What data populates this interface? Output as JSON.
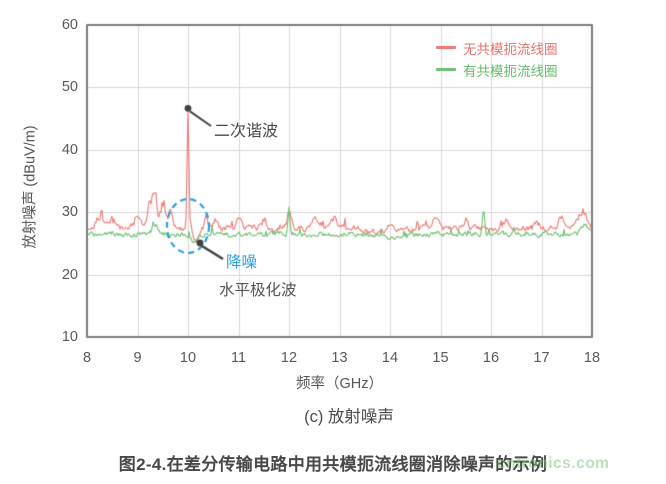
{
  "figure": {
    "sub_caption": "(c) 放射噪声",
    "main_caption": "图2-4.在差分传输电路中用共模扼流线圈消除噪声的示例",
    "watermark": "cntronics.com"
  },
  "colors": {
    "series_no_choke": "#ef7e79",
    "series_with_choke": "#74c275",
    "legend_no_choke_text": "#e8736f",
    "legend_with_choke_text": "#64bc66",
    "grid": "#d8d8d8",
    "frame": "#7d7d7d",
    "tick_text": "#595959",
    "annotation_dark": "#424242",
    "annotation_blue": "#2b9fdf",
    "dashed_circle": "#2b9fdf"
  },
  "chart_data": {
    "type": "line",
    "title": "(c) 放射噪声",
    "xlabel": "频率（GHz）",
    "ylabel": "放射噪声 (dBuV/m)",
    "xlim": [
      8,
      18
    ],
    "ylim": [
      10,
      60
    ],
    "x_ticks": [
      8,
      9,
      10,
      11,
      12,
      13,
      14,
      15,
      16,
      17,
      18
    ],
    "y_ticks": [
      60,
      50,
      40,
      30,
      20,
      10
    ],
    "grid": true,
    "legend_position": "top-right",
    "series": [
      {
        "name": "无共模扼流线圈",
        "color": "#ef7e79",
        "baseline": 27.4,
        "noise_amp": 0.85,
        "spike_amp": 1.6,
        "x_profile": [
          8,
          8.5,
          9,
          9.5,
          10,
          10.5,
          11,
          11.5,
          12,
          12.5,
          13,
          13.5,
          14,
          14.5,
          15,
          15.5,
          16,
          16.5,
          17,
          17.5,
          18
        ],
        "y_profile": [
          28,
          28.5,
          29.5,
          32,
          46,
          28.5,
          28.5,
          28.5,
          29.8,
          28.5,
          29,
          27.5,
          27,
          27.5,
          29.2,
          28.5,
          28.5,
          28,
          28.5,
          29,
          30
        ],
        "peaks": [
          {
            "x": 8.25,
            "y": 29.3,
            "w": 0.07
          },
          {
            "x": 8.5,
            "y": 28.8,
            "w": 0.06
          },
          {
            "x": 9.0,
            "y": 29.5,
            "w": 0.05
          },
          {
            "x": 9.25,
            "y": 31.2,
            "w": 0.05
          },
          {
            "x": 9.35,
            "y": 32.3,
            "w": 0.04
          },
          {
            "x": 9.5,
            "y": 31.5,
            "w": 0.05
          },
          {
            "x": 9.65,
            "y": 30.0,
            "w": 0.04
          },
          {
            "x": 10.0,
            "y": 46.0,
            "w": 0.018
          },
          {
            "x": 10.35,
            "y": 29.8,
            "w": 0.03
          },
          {
            "x": 10.55,
            "y": 29.0,
            "w": 0.03
          },
          {
            "x": 11.0,
            "y": 29.0,
            "w": 0.04
          },
          {
            "x": 11.5,
            "y": 28.8,
            "w": 0.05
          },
          {
            "x": 12.0,
            "y": 29.8,
            "w": 0.04
          },
          {
            "x": 12.5,
            "y": 28.8,
            "w": 0.04
          },
          {
            "x": 12.9,
            "y": 29.2,
            "w": 0.05
          },
          {
            "x": 14.0,
            "y": 28.3,
            "w": 0.05
          },
          {
            "x": 14.9,
            "y": 29.2,
            "w": 0.06
          },
          {
            "x": 15.5,
            "y": 28.6,
            "w": 0.04
          },
          {
            "x": 16.3,
            "y": 28.8,
            "w": 0.05
          },
          {
            "x": 16.9,
            "y": 28.8,
            "w": 0.04
          },
          {
            "x": 17.4,
            "y": 29.2,
            "w": 0.05
          },
          {
            "x": 17.8,
            "y": 30.2,
            "w": 0.08
          }
        ],
        "dips": [
          {
            "x": 10.18,
            "y": 25.2,
            "w": 0.06
          },
          {
            "x": 13.9,
            "y": 26.6,
            "w": 0.25
          }
        ]
      },
      {
        "name": "有共模扼流线圈",
        "color": "#74c275",
        "baseline": 26.45,
        "noise_amp": 0.75,
        "spike_amp": 1.1,
        "x_profile": [
          8,
          8.5,
          9,
          9.5,
          10,
          10.5,
          11,
          11.5,
          12,
          12.5,
          13,
          13.5,
          14,
          14.5,
          15,
          15.5,
          16,
          16.5,
          17,
          17.5,
          18
        ],
        "y_profile": [
          26.5,
          26.5,
          27,
          27.5,
          26,
          26.5,
          26.5,
          26.5,
          31,
          26.5,
          26.5,
          26,
          26,
          26,
          26.5,
          26.5,
          29.5,
          27,
          26.5,
          27,
          28
        ],
        "peaks": [
          {
            "x": 9.35,
            "y": 28.0,
            "w": 0.05
          },
          {
            "x": 12.0,
            "y": 31.0,
            "w": 0.02
          },
          {
            "x": 15.85,
            "y": 30.0,
            "w": 0.025
          },
          {
            "x": 17.85,
            "y": 28.2,
            "w": 0.05
          }
        ],
        "dips": [
          {
            "x": 10.1,
            "y": 25.4,
            "w": 0.08
          },
          {
            "x": 13.9,
            "y": 25.9,
            "w": 0.25
          }
        ]
      }
    ],
    "annotations": [
      {
        "id": "second-harmonic",
        "text": "二次谐波",
        "target": {
          "x": 10.0,
          "y": 46.0
        },
        "marker": "dot"
      },
      {
        "id": "noise-reduction",
        "text": "降噪",
        "target": {
          "x": 10.0,
          "y": 27.0
        },
        "marker": "dashed-circle"
      },
      {
        "id": "horizontal-polarized",
        "text": "水平极化波"
      }
    ]
  }
}
